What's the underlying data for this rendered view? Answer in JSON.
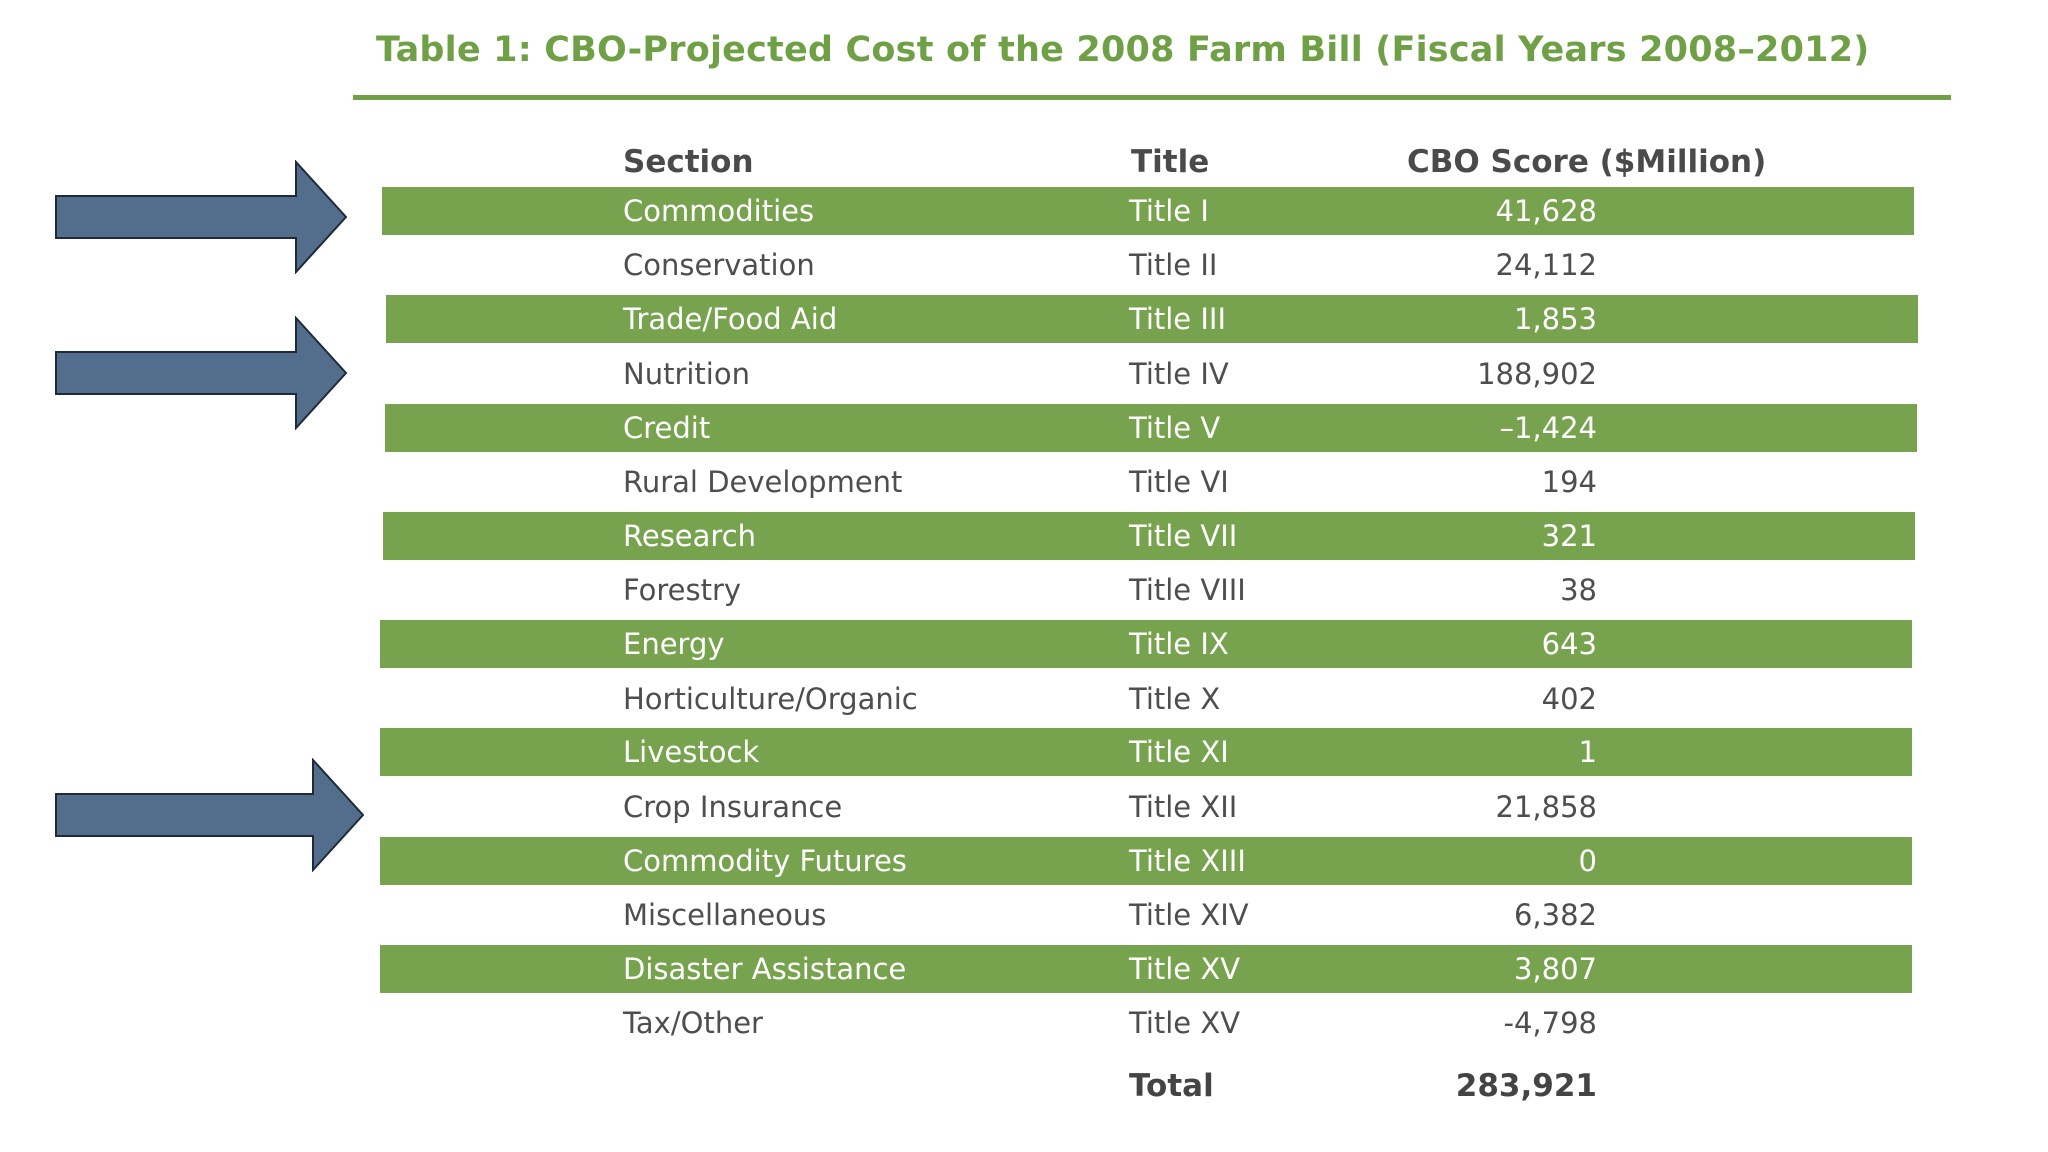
{
  "table": {
    "title": "Table 1: CBO-Projected Cost of the 2008 Farm Bill (Fiscal Years 2008–2012)",
    "headers": {
      "section": "Section",
      "title": "Title",
      "score": "CBO Score ($Million)"
    },
    "rows": [
      {
        "section": "Commodities",
        "title": "Title I",
        "score": "41,628"
      },
      {
        "section": "Conservation",
        "title": "Title II",
        "score": "24,112"
      },
      {
        "section": "Trade/Food Aid",
        "title": "Title III",
        "score": "1,853"
      },
      {
        "section": "Nutrition",
        "title": "Title IV",
        "score": "188,902"
      },
      {
        "section": "Credit",
        "title": "Title V",
        "score": "–1,424"
      },
      {
        "section": "Rural Development",
        "title": "Title VI",
        "score": "194"
      },
      {
        "section": "Research",
        "title": "Title VII",
        "score": "321"
      },
      {
        "section": "Forestry",
        "title": "Title VIII",
        "score": "38"
      },
      {
        "section": "Energy",
        "title": "Title IX",
        "score": "643"
      },
      {
        "section": "Horticulture/Organic",
        "title": "Title X",
        "score": "402"
      },
      {
        "section": "Livestock",
        "title": "Title XI",
        "score": "1"
      },
      {
        "section": "Crop Insurance",
        "title": "Title XII",
        "score": "21,858"
      },
      {
        "section": "Commodity Futures",
        "title": "Title XIII",
        "score": "0"
      },
      {
        "section": "Miscellaneous",
        "title": "Title XIV",
        "score": "6,382"
      },
      {
        "section": "Disaster Assistance",
        "title": "Title XV",
        "score": "3,807"
      },
      {
        "section": "Tax/Other",
        "title": "Title XV",
        "score": "-4,798"
      }
    ],
    "total": {
      "label": "Total",
      "score": "283,921"
    }
  },
  "colors": {
    "accent_green": "#6fa045",
    "row_green": "#77a34e",
    "arrow_fill": "#536e8c",
    "arrow_stroke": "#1f2a38"
  },
  "arrows": [
    {
      "icon": "right-arrow-icon",
      "points_to": "Commodities"
    },
    {
      "icon": "right-arrow-icon",
      "points_to": "Nutrition"
    },
    {
      "icon": "right-arrow-icon",
      "points_to": "Crop Insurance"
    }
  ]
}
